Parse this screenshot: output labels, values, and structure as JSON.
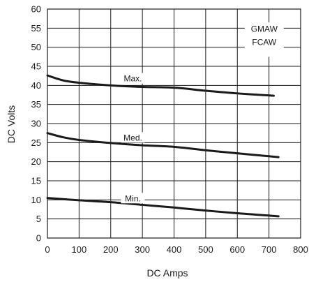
{
  "chart_data": {
    "type": "line",
    "title": "",
    "xlabel": "DC Amps",
    "ylabel": "DC Volts",
    "xlim": [
      0,
      800
    ],
    "ylim": [
      0,
      60
    ],
    "xticks": [
      0,
      100,
      200,
      300,
      400,
      500,
      600,
      700,
      800
    ],
    "yticks": [
      0,
      5,
      10,
      15,
      20,
      25,
      30,
      35,
      40,
      45,
      50,
      55,
      60
    ],
    "grid": true,
    "legend": {
      "lines": [
        "GMAW",
        "FCAW"
      ],
      "placement": "top-right"
    },
    "series": [
      {
        "name": "Max.",
        "points": [
          [
            0,
            42.6
          ],
          [
            50,
            41.3
          ],
          [
            100,
            40.7
          ],
          [
            200,
            40.0
          ],
          [
            300,
            39.6
          ],
          [
            400,
            39.4
          ],
          [
            500,
            38.6
          ],
          [
            600,
            37.9
          ],
          [
            715,
            37.3
          ]
        ]
      },
      {
        "name": "Med.",
        "points": [
          [
            0,
            27.5
          ],
          [
            50,
            26.4
          ],
          [
            100,
            25.7
          ],
          [
            200,
            24.9
          ],
          [
            300,
            24.3
          ],
          [
            400,
            23.9
          ],
          [
            500,
            23.0
          ],
          [
            600,
            22.2
          ],
          [
            730,
            21.2
          ]
        ]
      },
      {
        "name": "Min.",
        "points": [
          [
            0,
            10.5
          ],
          [
            100,
            9.9
          ],
          [
            200,
            9.4
          ],
          [
            300,
            8.7
          ],
          [
            400,
            8.0
          ],
          [
            500,
            7.2
          ],
          [
            600,
            6.5
          ],
          [
            730,
            5.7
          ]
        ]
      }
    ],
    "series_colors": [
      "#1a1a1a",
      "#1a1a1a",
      "#1a1a1a"
    ]
  }
}
